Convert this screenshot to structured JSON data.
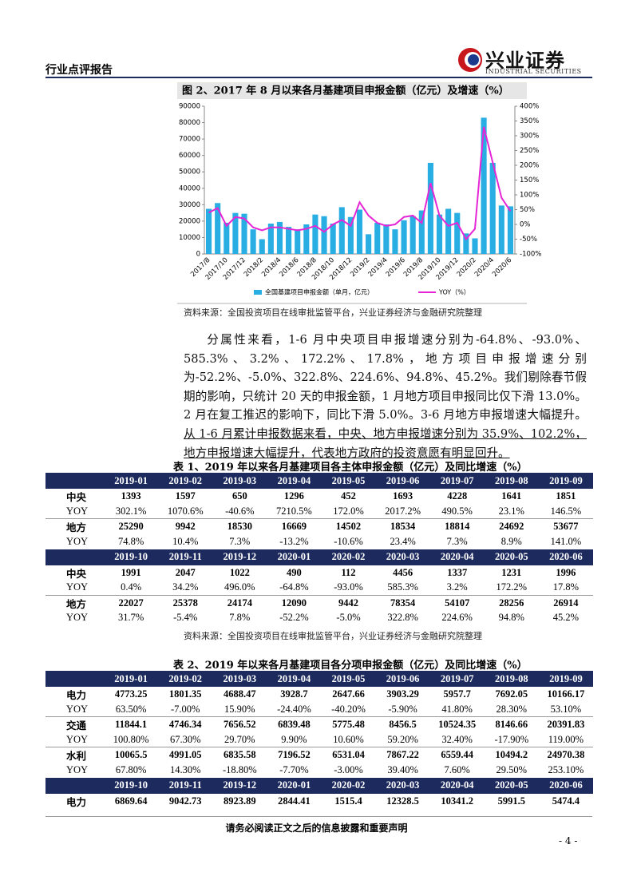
{
  "header": {
    "report_type": "行业点评报告",
    "logo_name": "兴业证券",
    "logo_en": "INDUSTRIAL SECURITIES"
  },
  "chart_data": {
    "type": "bar-line",
    "title": "图 2、2017 年 8 月以来各月基建项目申报金额（亿元）及增速（%）",
    "categories": [
      "2017/8",
      null,
      "2017/10",
      null,
      "2017/12",
      null,
      "2018/2",
      null,
      "2018/4",
      null,
      "2018/6",
      null,
      "2018/8",
      null,
      "2018/10",
      null,
      "2018/12",
      null,
      "2019/2",
      null,
      "2019/4",
      null,
      "2019/6",
      null,
      "2019/8",
      null,
      "2019/10",
      null,
      "2019/12",
      null,
      "2020/2",
      null,
      "2020/4",
      null,
      "2020/6"
    ],
    "series": [
      {
        "name": "全国基建项目申报金额（单月，亿元）",
        "color": "#29aee3",
        "kind": "bar",
        "values": [
          27500,
          31000,
          19000,
          25000,
          24500,
          15000,
          9000,
          18500,
          19500,
          16500,
          15000,
          18000,
          24000,
          23000,
          18500,
          28500,
          22500,
          27000,
          12000,
          19000,
          18000,
          15000,
          20500,
          23000,
          26500,
          55500,
          24000,
          27500,
          25000,
          12500,
          9500,
          83000,
          55500,
          29500,
          29000
        ]
      },
      {
        "name": "YOY（%）",
        "color": "#e626d6",
        "kind": "line",
        "axis": "y2",
        "values": [
          40,
          55,
          -5,
          25,
          20,
          -10,
          -20,
          -10,
          -10,
          -15,
          -20,
          -15,
          -5,
          -25,
          0,
          15,
          -5,
          75,
          30,
          5,
          -5,
          0,
          25,
          30,
          5,
          140,
          30,
          -5,
          5,
          -50,
          -15,
          330,
          210,
          90,
          45
        ]
      }
    ],
    "ylim": [
      0,
      90000
    ],
    "yticks": [
      0,
      10000,
      20000,
      30000,
      40000,
      50000,
      60000,
      70000,
      80000,
      90000
    ],
    "y2lim": [
      -100,
      400
    ],
    "y2ticks": [
      {
        "value": -100,
        "label": "-100%"
      },
      {
        "value": -50,
        "label": "-50%"
      },
      {
        "value": 0,
        "label": "0%"
      },
      {
        "value": 50,
        "label": "50%"
      },
      {
        "value": 100,
        "label": "100%"
      },
      {
        "value": 150,
        "label": "150%"
      },
      {
        "value": 200,
        "label": "200%"
      },
      {
        "value": 250,
        "label": "250%"
      },
      {
        "value": 300,
        "label": "300%"
      },
      {
        "value": 350,
        "label": "350%"
      },
      {
        "value": 400,
        "label": "400%"
      }
    ],
    "source": "资料来源：全国投资项目在线审批监管平台，兴业证券经济与金融研究院整理"
  },
  "paragraph": {
    "text": "分属性来看，1-6 月中央项目申报增速分别为-64.8%、-93.0%、585.3%、3.2%、172.2%、17.8%，地方项目申报增速分别为-52.2%、-5.0%、322.8%、224.6%、94.8%、45.2%。我们剔除春节假期的影响，只统计 20 天的申报金额，1 月地方项目申报同比仅下滑 13.0%。2 月在复工推迟的影响下，同比下滑 5.0%。3-6 月地方申报增速大幅提升。",
    "underlined": "从 1-6 月累计申报数据来看，中央、地方申报增速分别为 35.9%、102.2%，地方申报增速大幅提升，代表地方政府的投资意愿有明显回升。"
  },
  "table1": {
    "title": "表 1、2019 年以来各月基建项目各主体申报金额（亿元）及同比增速（%）",
    "blocks": [
      {
        "header": [
          "2019-01",
          "2019-02",
          "2019-03",
          "2019-04",
          "2019-05",
          "2019-06",
          "2019-07",
          "2019-08",
          "2019-09"
        ],
        "rows": [
          {
            "label": "中央",
            "values": [
              "1393",
              "1597",
              "650",
              "1296",
              "452",
              "1693",
              "4228",
              "1641",
              "1851"
            ]
          },
          {
            "label": "YOY",
            "values": [
              "302.1%",
              "1070.6%",
              "-40.6%",
              "7210.5%",
              "172.0%",
              "2017.2%",
              "490.5%",
              "23.1%",
              "146.5%"
            ]
          },
          {
            "label": "地方",
            "values": [
              "25290",
              "9942",
              "18530",
              "16669",
              "14502",
              "18534",
              "18814",
              "24692",
              "53677"
            ]
          },
          {
            "label": "YOY",
            "values": [
              "74.8%",
              "10.4%",
              "7.3%",
              "-13.2%",
              "-10.6%",
              "23.4%",
              "7.3%",
              "8.9%",
              "141.0%"
            ]
          }
        ]
      },
      {
        "header": [
          "2019-10",
          "2019-11",
          "2019-12",
          "2020-01",
          "2020-02",
          "2020-03",
          "2020-04",
          "2020-05",
          "2020-06"
        ],
        "rows": [
          {
            "label": "中央",
            "values": [
              "1991",
              "2047",
              "1022",
              "490",
              "112",
              "4456",
              "1337",
              "1231",
              "1996"
            ]
          },
          {
            "label": "YOY",
            "values": [
              "0.4%",
              "34.2%",
              "496.0%",
              "-64.8%",
              "-93.0%",
              "585.3%",
              "3.2%",
              "172.2%",
              "17.8%"
            ]
          },
          {
            "label": "地方",
            "values": [
              "22027",
              "25378",
              "24174",
              "12090",
              "9442",
              "78354",
              "54107",
              "28256",
              "26914"
            ]
          },
          {
            "label": "YOY",
            "values": [
              "31.7%",
              "-5.4%",
              "7.8%",
              "-52.2%",
              "-5.0%",
              "322.8%",
              "224.6%",
              "94.8%",
              "45.2%"
            ]
          }
        ]
      }
    ],
    "source": "资料来源：全国投资项目在线审批监管平台，兴业证券经济与金融研究院整理"
  },
  "table2": {
    "title": "表 2、2019 年以来各月基建项目各分项申报金额（亿元）及同比增速（%）",
    "blocks": [
      {
        "header": [
          "2019-01",
          "2019-02",
          "2019-03",
          "2019-04",
          "2019-05",
          "2019-06",
          "2019-07",
          "2019-08",
          "2019-09"
        ],
        "rows": [
          {
            "label": "电力",
            "values": [
              "4773.25",
              "1801.35",
              "4688.47",
              "3928.7",
              "2647.66",
              "3903.29",
              "5957.7",
              "7692.05",
              "10166.17"
            ]
          },
          {
            "label": "YOY",
            "values": [
              "63.50%",
              "-7.00%",
              "15.90%",
              "-24.40%",
              "-40.20%",
              "-5.90%",
              "41.80%",
              "28.30%",
              "53.10%"
            ]
          },
          {
            "label": "交通",
            "values": [
              "11844.1",
              "4746.34",
              "7656.52",
              "6839.48",
              "5775.48",
              "8456.5",
              "10524.35",
              "8146.66",
              "20391.83"
            ]
          },
          {
            "label": "YOY",
            "values": [
              "100.80%",
              "67.30%",
              "29.70%",
              "9.90%",
              "10.60%",
              "59.20%",
              "32.40%",
              "-17.90%",
              "119.00%"
            ]
          },
          {
            "label": "水利",
            "values": [
              "10065.5",
              "4991.05",
              "6835.58",
              "7196.52",
              "6531.04",
              "7867.22",
              "6559.44",
              "10494.2",
              "24970.38"
            ]
          },
          {
            "label": "YOY",
            "values": [
              "67.80%",
              "14.30%",
              "-18.80%",
              "-7.70%",
              "-3.00%",
              "39.40%",
              "7.60%",
              "29.50%",
              "253.10%"
            ]
          }
        ]
      },
      {
        "header": [
          "2019-10",
          "2019-11",
          "2019-12",
          "2020-01",
          "2020-02",
          "2020-03",
          "2020-04",
          "2020-05",
          "2020-06"
        ],
        "rows": [
          {
            "label": "电力",
            "values": [
              "6869.64",
              "9042.73",
              "8923.89",
              "2844.41",
              "1515.4",
              "12328.5",
              "10341.2",
              "5991.5",
              "5474.4"
            ]
          }
        ]
      }
    ]
  },
  "footer": {
    "disclaimer": "请务必阅读正文之后的信息披露和重要声明",
    "page": "- 4 -"
  }
}
